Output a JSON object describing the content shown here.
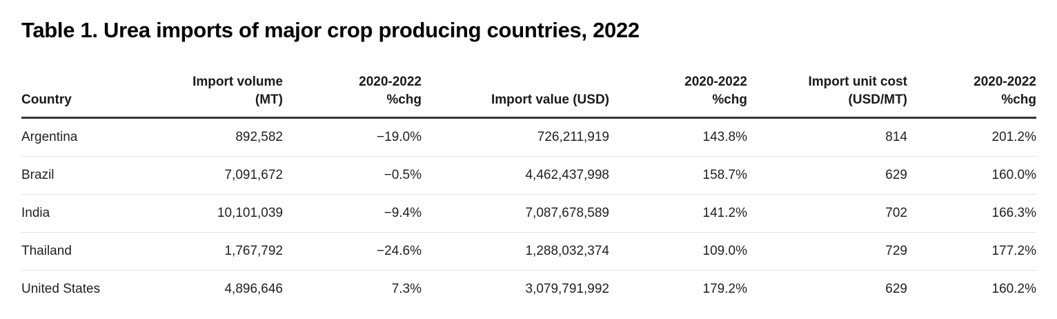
{
  "title": "Table 1. Urea imports of major crop producing countries, 2022",
  "table": {
    "headers": [
      {
        "lines": [
          "Country"
        ]
      },
      {
        "lines": [
          "Import volume",
          "(MT)"
        ]
      },
      {
        "lines": [
          "2020-2022",
          "%chg"
        ]
      },
      {
        "lines": [
          "Import value (USD)"
        ]
      },
      {
        "lines": [
          "2020-2022",
          "%chg"
        ]
      },
      {
        "lines": [
          "Import unit cost",
          "(USD/MT)"
        ]
      },
      {
        "lines": [
          "2020-2022",
          "%chg"
        ]
      }
    ],
    "rows": [
      [
        "Argentina",
        "892,582",
        "−19.0%",
        "726,211,919",
        "143.8%",
        "814",
        "201.2%"
      ],
      [
        "Brazil",
        "7,091,672",
        "−0.5%",
        "4,462,437,998",
        "158.7%",
        "629",
        "160.0%"
      ],
      [
        "India",
        "10,101,039",
        "−9.4%",
        "7,087,678,589",
        "141.2%",
        "702",
        "166.3%"
      ],
      [
        "Thailand",
        "1,767,792",
        "−24.6%",
        "1,288,032,374",
        "109.0%",
        "729",
        "177.2%"
      ],
      [
        "United States",
        "4,896,646",
        "7.3%",
        "3,079,791,992",
        "179.2%",
        "629",
        "160.2%"
      ]
    ]
  },
  "colors": {
    "text": "#1a1a1a",
    "header_rule": "#333333",
    "row_rule": "#e4e4e4",
    "background": "#ffffff"
  }
}
